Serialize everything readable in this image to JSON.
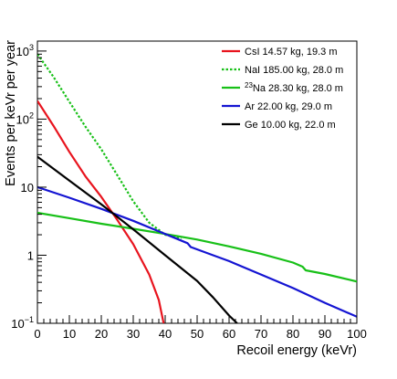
{
  "chart_data": {
    "type": "line",
    "title": "",
    "xlabel": "Recoil energy (keVr)",
    "ylabel": "Events per keVr per year",
    "xlim": [
      0,
      100
    ],
    "ylim": [
      0.1,
      1400
    ],
    "yscale": "log",
    "grid": false,
    "legend_position": "top-right",
    "x_ticks": [
      0,
      10,
      20,
      30,
      40,
      50,
      60,
      70,
      80,
      90,
      100
    ],
    "x_tick_labels": [
      "0",
      "10",
      "20",
      "30",
      "40",
      "50",
      "60",
      "70",
      "80",
      "90",
      "100"
    ],
    "y_ticks": [
      {
        "value": 0.1,
        "base": "10",
        "exp": "−1"
      },
      {
        "value": 1,
        "base": "1",
        "exp": ""
      },
      {
        "value": 10,
        "base": "10",
        "exp": ""
      },
      {
        "value": 100,
        "base": "10",
        "exp": "2"
      },
      {
        "value": 1000,
        "base": "10",
        "exp": "3"
      }
    ],
    "series": [
      {
        "name": "CsI 14.57 kg,  19.3 m",
        "color": "#e8141e",
        "dash": "solid",
        "x": [
          0,
          5,
          10,
          15,
          20,
          25,
          30,
          35,
          38,
          39.5
        ],
        "y": [
          185,
          80,
          33,
          14.5,
          7.2,
          3.3,
          1.45,
          0.52,
          0.22,
          0.1
        ]
      },
      {
        "name": "NaI 185.00 kg,  28.0 m",
        "color": "#18c018",
        "dash": "dotted",
        "x": [
          0,
          5,
          10,
          15,
          20,
          25,
          30,
          35,
          40,
          45
        ],
        "y": [
          900,
          420,
          180,
          78,
          36,
          15,
          6.2,
          3.0,
          2.0,
          1.75
        ]
      },
      {
        "name": "23Na 28.30 kg,  28.0 m",
        "name_sup": "23",
        "name_rest": "Na 28.30 kg,  28.0 m",
        "color": "#18c018",
        "dash": "solid",
        "x": [
          0,
          10,
          20,
          30,
          40,
          50,
          60,
          70,
          80,
          83,
          84,
          90,
          100
        ],
        "y": [
          4.2,
          3.5,
          2.9,
          2.45,
          2.05,
          1.7,
          1.35,
          1.05,
          0.78,
          0.68,
          0.6,
          0.53,
          0.41
        ]
      },
      {
        "name": "Ar 22.00 kg,  29.0 m",
        "color": "#1414d2",
        "dash": "solid",
        "x": [
          0,
          10,
          20,
          30,
          40,
          47,
          48,
          55,
          60,
          70,
          80,
          90,
          100
        ],
        "y": [
          10,
          7.0,
          4.8,
          3.2,
          2.05,
          1.5,
          1.32,
          1.0,
          0.82,
          0.52,
          0.33,
          0.2,
          0.125
        ]
      },
      {
        "name": "Ge 10.00 kg,  22.0 m",
        "color": "#000000",
        "dash": "solid",
        "x": [
          0,
          10,
          20,
          30,
          40,
          50,
          55,
          60,
          62.5
        ],
        "y": [
          28,
          12.5,
          5.6,
          2.4,
          1.0,
          0.42,
          0.24,
          0.13,
          0.1
        ]
      }
    ]
  }
}
